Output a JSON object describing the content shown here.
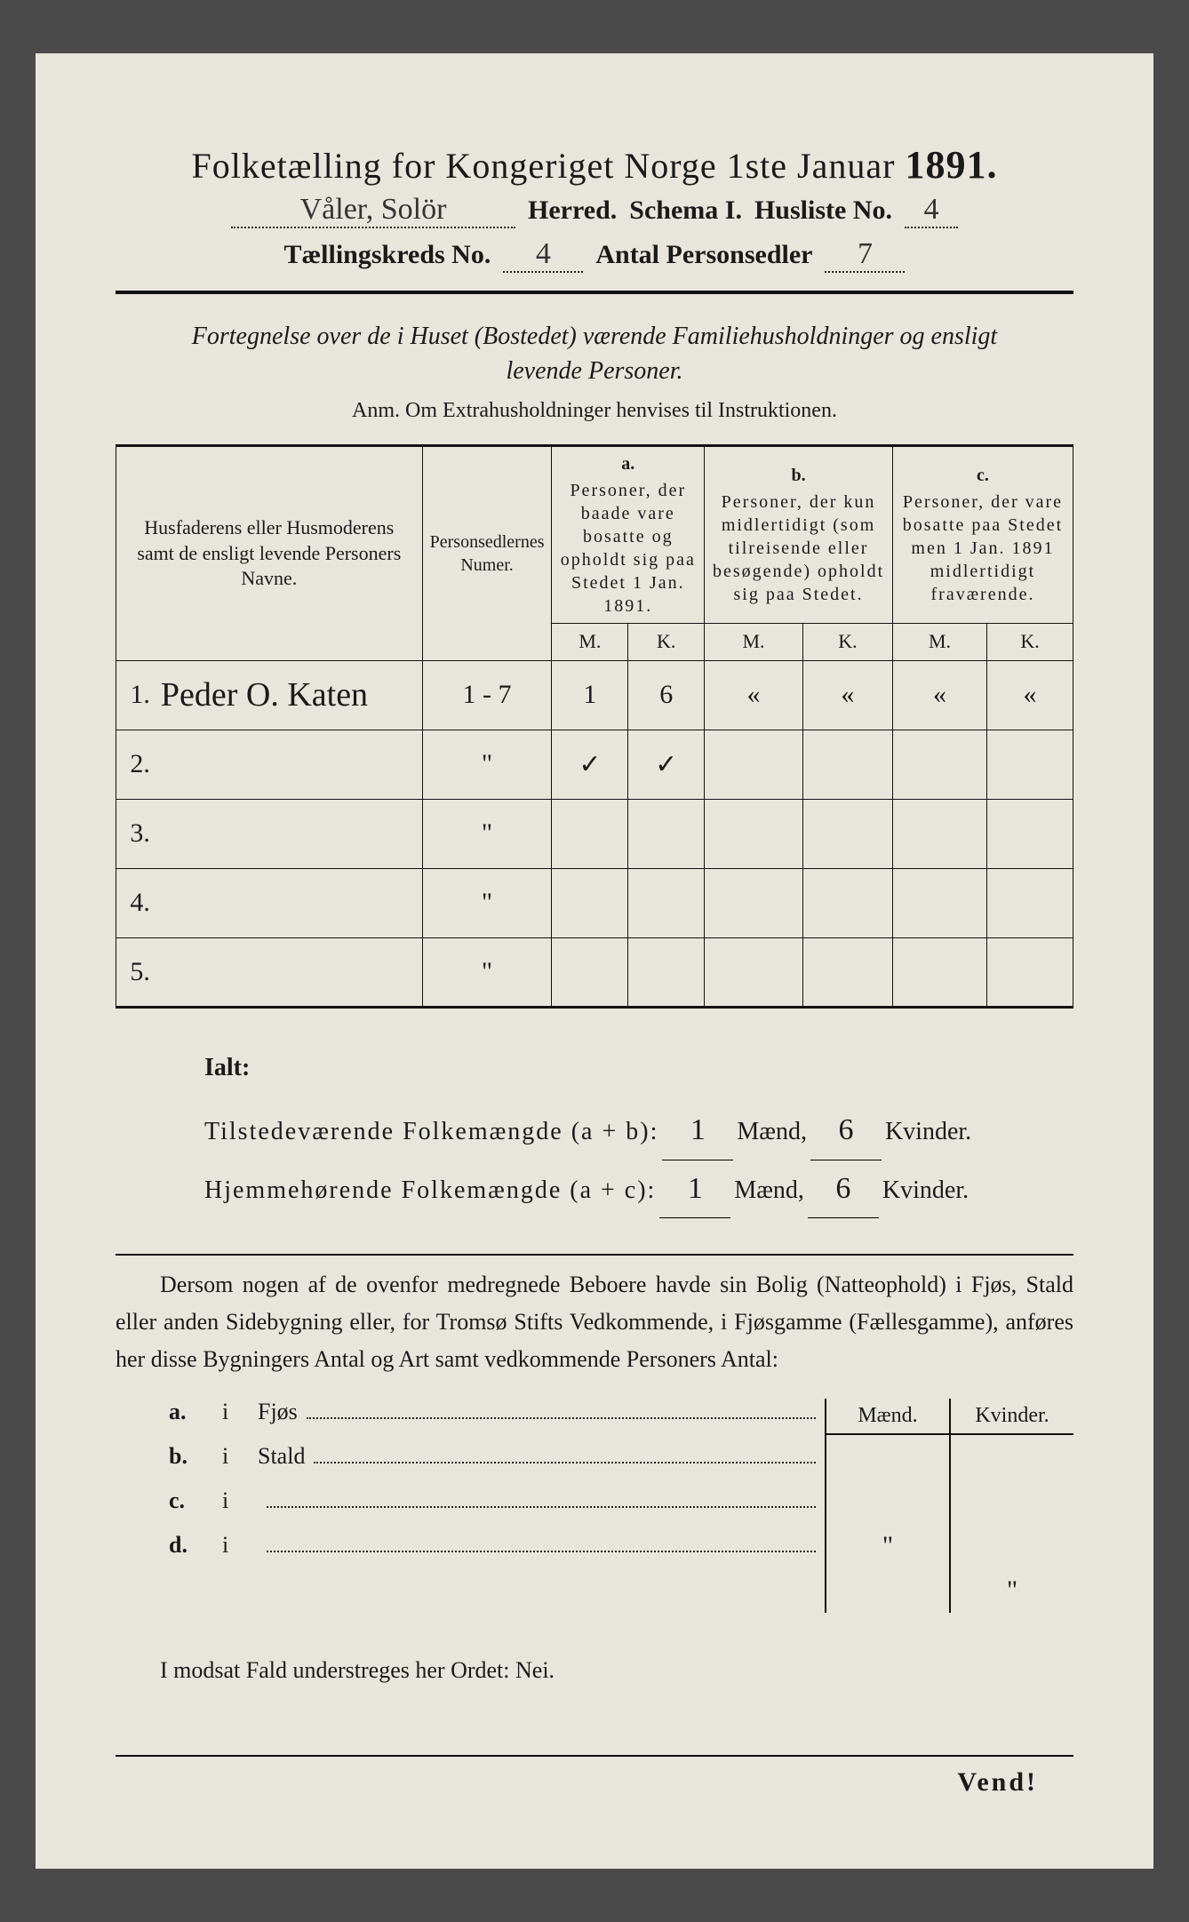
{
  "title": {
    "main": "Folketælling for Kongeriget Norge 1ste Januar",
    "year": "1891."
  },
  "header": {
    "herred_value": "Våler, Solör",
    "herred_label": "Herred.",
    "schema_label": "Schema I.",
    "husliste_label": "Husliste No.",
    "husliste_value": "4",
    "kreds_label": "Tællingskreds No.",
    "kreds_value": "4",
    "antal_label": "Antal Personsedler",
    "antal_value": "7"
  },
  "subtitle": {
    "line1": "Fortegnelse over de i Huset (Bostedet) værende Familiehusholdninger og ensligt",
    "line2": "levende Personer.",
    "anm": "Anm.  Om Extrahusholdninger henvises til Instruktionen."
  },
  "table": {
    "columns": {
      "names": "Husfaderens eller Husmoderens samt de ensligt levende Personers Navne.",
      "numer": "Personsedlernes Numer.",
      "a_letter": "a.",
      "a_text": "Personer, der baade vare bosatte og opholdt sig paa Stedet 1 Jan. 1891.",
      "b_letter": "b.",
      "b_text": "Personer, der kun midlertidigt (som tilreisende eller besøgende) opholdt sig paa Stedet.",
      "c_letter": "c.",
      "c_text": "Personer, der vare bosatte paa Stedet men 1 Jan. 1891 midlertidigt fraværende.",
      "m": "M.",
      "k": "K."
    },
    "rows": [
      {
        "n": "1.",
        "name": "Peder O. Katen",
        "numer": "1 - 7",
        "am": "1",
        "ak": "6",
        "bm": "«",
        "bk": "«",
        "cm": "«",
        "ck": "«"
      },
      {
        "n": "2.",
        "name": "",
        "numer": "\"",
        "am": "✓",
        "ak": "✓",
        "bm": "",
        "bk": "",
        "cm": "",
        "ck": ""
      },
      {
        "n": "3.",
        "name": "",
        "numer": "\"",
        "am": "",
        "ak": "",
        "bm": "",
        "bk": "",
        "cm": "",
        "ck": ""
      },
      {
        "n": "4.",
        "name": "",
        "numer": "\"",
        "am": "",
        "ak": "",
        "bm": "",
        "bk": "",
        "cm": "",
        "ck": ""
      },
      {
        "n": "5.",
        "name": "",
        "numer": "\"",
        "am": "",
        "ak": "",
        "bm": "",
        "bk": "",
        "cm": "",
        "ck": ""
      }
    ]
  },
  "totals": {
    "ialt": "Ialt:",
    "present_label": "Tilstedeværende Folkemængde (a + b):",
    "resident_label": "Hjemmehørende Folkemængde (a + c):",
    "maend": "Mænd,",
    "kvinder": "Kvinder.",
    "present_m": "1",
    "present_k": "6",
    "resident_m": "1",
    "resident_k": "6"
  },
  "paragraph": "Dersom nogen af de ovenfor medregnede Beboere havde sin Bolig (Natteophold) i Fjøs, Stald eller anden Sidebygning eller, for Tromsø Stifts Vedkommende, i Fjøsgamme (Fællesgamme), anføres her disse Bygningers Antal og Art samt vedkommende Personers Antal:",
  "bygning": {
    "maend": "Mænd.",
    "kvinder": "Kvinder.",
    "rows": [
      {
        "letter": "a.",
        "i": "i",
        "label": "Fjøs",
        "m": "",
        "k": ""
      },
      {
        "letter": "b.",
        "i": "i",
        "label": "Stald",
        "m": "",
        "k": ""
      },
      {
        "letter": "c.",
        "i": "i",
        "label": "",
        "m": "\"",
        "k": ""
      },
      {
        "letter": "d.",
        "i": "i",
        "label": "",
        "m": "",
        "k": "\""
      }
    ]
  },
  "nei": "I modsat Fald understreges her Ordet: Nei.",
  "vend": "Vend!"
}
